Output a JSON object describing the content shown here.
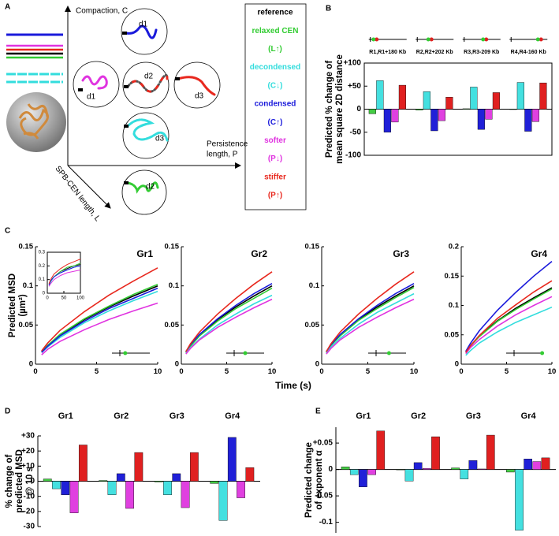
{
  "panels": [
    "A",
    "B",
    "C",
    "D",
    "E"
  ],
  "diagram": {
    "axis_labels": {
      "compaction": "Compaction, C",
      "persistence": [
        "Persistence",
        "length, P"
      ],
      "length": "SPB-CEN length, L"
    },
    "circle_labels": [
      "d1",
      "d1",
      "d2",
      "d3",
      "d3",
      "d2"
    ],
    "legend": [
      {
        "text": "reference",
        "color": "#000000"
      },
      {
        "text": "relaxed CEN",
        "color": "#33cc33"
      },
      {
        "text": "(L↑)",
        "color": "#33cc33"
      },
      {
        "text": "decondensed",
        "color": "#33dddd"
      },
      {
        "text": "(C↓)",
        "color": "#33dddd"
      },
      {
        "text": "condensed",
        "color": "#1a1adb"
      },
      {
        "text": "(C↑)",
        "color": "#1a1adb"
      },
      {
        "text": "softer",
        "color": "#e033e0"
      },
      {
        "text": "(P↓)",
        "color": "#e033e0"
      },
      {
        "text": "stiffer",
        "color": "#e8281e"
      },
      {
        "text": "(P↑)",
        "color": "#e8281e"
      }
    ]
  },
  "chart_data": [
    {
      "type": "bar",
      "box": true,
      "ylabel": [
        "Predicted % change of",
        "mean square 2D distance"
      ],
      "categories": [
        "R1,R1+180 Kb",
        "R2,R2+202 Kb",
        "R3,R3-209 Kb",
        "R4,R4-160 Kb"
      ],
      "ylim": [
        -100,
        100
      ],
      "yticks": [
        {
          "value": 100,
          "label": "+100"
        },
        {
          "value": 50,
          "label": "+50"
        },
        0,
        -50,
        -100
      ],
      "series": [
        {
          "color": "#44cc44",
          "values": [
            -10,
            -2,
            1,
            0
          ]
        },
        {
          "color": "#44e0e0",
          "values": [
            62,
            38,
            48,
            58
          ]
        },
        {
          "color": "#2020d8",
          "values": [
            -50,
            -47,
            -44,
            -48
          ]
        },
        {
          "color": "#e040e0",
          "values": [
            -28,
            -25,
            -22,
            -27
          ]
        },
        {
          "color": "#e02020",
          "values": [
            52,
            26,
            36,
            57
          ]
        }
      ]
    },
    {
      "type": "line",
      "title": "Gr1",
      "ylabel": [
        "Predicted MSD",
        "(µm²)"
      ],
      "xlabel": "Time (s)",
      "x": [
        0.5,
        1,
        2,
        4,
        6,
        8,
        10
      ],
      "xlim": [
        0,
        10
      ],
      "xticks": [
        0,
        5,
        10
      ],
      "ylim": [
        0,
        0.15
      ],
      "yticks": [
        0,
        0.05,
        0.1,
        0.15
      ],
      "series": [
        {
          "color": "#000000",
          "values": [
            0.016,
            0.024,
            0.037,
            0.057,
            0.073,
            0.087,
            0.1
          ]
        },
        {
          "color": "#33cc33",
          "values": [
            0.016,
            0.024,
            0.038,
            0.058,
            0.074,
            0.089,
            0.102
          ]
        },
        {
          "color": "#33dddd",
          "values": [
            0.015,
            0.022,
            0.034,
            0.053,
            0.068,
            0.081,
            0.093
          ]
        },
        {
          "color": "#1a1adb",
          "values": [
            0.015,
            0.023,
            0.036,
            0.055,
            0.071,
            0.084,
            0.097
          ]
        },
        {
          "color": "#e033e0",
          "values": [
            0.012,
            0.019,
            0.029,
            0.044,
            0.057,
            0.068,
            0.078
          ]
        },
        {
          "color": "#e8281e",
          "values": [
            0.017,
            0.027,
            0.043,
            0.067,
            0.088,
            0.106,
            0.123
          ]
        }
      ],
      "inset": {
        "x": [
          5,
          10,
          20,
          40,
          60,
          80,
          100
        ],
        "xlim": [
          0,
          100
        ],
        "xticks": [
          0,
          50,
          100
        ],
        "ylim": [
          0,
          0.3
        ],
        "yticks": [
          0,
          0.1,
          0.2,
          0.3
        ],
        "series": [
          {
            "color": "#000000",
            "values": [
              0.06,
              0.09,
              0.12,
              0.16,
              0.18,
              0.2,
              0.21
            ]
          },
          {
            "color": "#33cc33",
            "values": [
              0.06,
              0.09,
              0.12,
              0.16,
              0.19,
              0.2,
              0.22
            ]
          },
          {
            "color": "#33dddd",
            "values": [
              0.06,
              0.08,
              0.12,
              0.15,
              0.17,
              0.19,
              0.2
            ]
          },
          {
            "color": "#1a1adb",
            "values": [
              0.06,
              0.09,
              0.12,
              0.15,
              0.17,
              0.19,
              0.2
            ]
          },
          {
            "color": "#e033e0",
            "values": [
              0.05,
              0.07,
              0.1,
              0.13,
              0.15,
              0.16,
              0.17
            ]
          },
          {
            "color": "#e8281e",
            "values": [
              0.07,
              0.1,
              0.14,
              0.18,
              0.21,
              0.23,
              0.25
            ]
          }
        ]
      }
    },
    {
      "type": "line",
      "title": "Gr2",
      "x": [
        0.5,
        1,
        2,
        4,
        6,
        8,
        10
      ],
      "xlim": [
        0,
        10
      ],
      "xticks": [
        0,
        5,
        10
      ],
      "ylim": [
        0,
        0.15
      ],
      "yticks": [
        0,
        0.05,
        0.1,
        0.15
      ],
      "series": [
        {
          "color": "#000000",
          "values": [
            0.016,
            0.024,
            0.037,
            0.057,
            0.073,
            0.087,
            0.1
          ]
        },
        {
          "color": "#33cc33",
          "values": [
            0.015,
            0.023,
            0.036,
            0.055,
            0.071,
            0.084,
            0.097
          ]
        },
        {
          "color": "#33dddd",
          "values": [
            0.014,
            0.021,
            0.032,
            0.05,
            0.064,
            0.077,
            0.088
          ]
        },
        {
          "color": "#1a1adb",
          "values": [
            0.016,
            0.025,
            0.038,
            0.058,
            0.075,
            0.09,
            0.103
          ]
        },
        {
          "color": "#e033e0",
          "values": [
            0.013,
            0.02,
            0.031,
            0.047,
            0.06,
            0.072,
            0.083
          ]
        },
        {
          "color": "#e8281e",
          "values": [
            0.016,
            0.026,
            0.041,
            0.064,
            0.084,
            0.102,
            0.118
          ]
        }
      ]
    },
    {
      "type": "line",
      "title": "Gr3",
      "x": [
        0.5,
        1,
        2,
        4,
        6,
        8,
        10
      ],
      "xlim": [
        0,
        10
      ],
      "xticks": [
        0,
        5,
        10
      ],
      "ylim": [
        0,
        0.15
      ],
      "yticks": [
        0,
        0.05,
        0.1,
        0.15
      ],
      "series": [
        {
          "color": "#000000",
          "values": [
            0.016,
            0.024,
            0.037,
            0.057,
            0.073,
            0.087,
            0.1
          ]
        },
        {
          "color": "#33cc33",
          "values": [
            0.015,
            0.024,
            0.036,
            0.056,
            0.071,
            0.085,
            0.098
          ]
        },
        {
          "color": "#33dddd",
          "values": [
            0.014,
            0.022,
            0.033,
            0.051,
            0.066,
            0.078,
            0.09
          ]
        },
        {
          "color": "#1a1adb",
          "values": [
            0.016,
            0.025,
            0.038,
            0.058,
            0.075,
            0.09,
            0.103
          ]
        },
        {
          "color": "#e033e0",
          "values": [
            0.013,
            0.02,
            0.031,
            0.047,
            0.06,
            0.072,
            0.083
          ]
        },
        {
          "color": "#e8281e",
          "values": [
            0.016,
            0.026,
            0.041,
            0.064,
            0.084,
            0.102,
            0.118
          ]
        }
      ]
    },
    {
      "type": "line",
      "title": "Gr4",
      "x": [
        0.5,
        1,
        2,
        4,
        6,
        8,
        10
      ],
      "xlim": [
        0,
        10
      ],
      "xticks": [
        0,
        5,
        10
      ],
      "ylim": [
        0,
        0.2
      ],
      "yticks": [
        0,
        0.05,
        0.1,
        0.15,
        0.2
      ],
      "series": [
        {
          "color": "#000000",
          "values": [
            0.02,
            0.031,
            0.048,
            0.074,
            0.095,
            0.113,
            0.13
          ]
        },
        {
          "color": "#33cc33",
          "values": [
            0.02,
            0.031,
            0.047,
            0.073,
            0.093,
            0.111,
            0.128
          ]
        },
        {
          "color": "#33dddd",
          "values": [
            0.015,
            0.023,
            0.036,
            0.055,
            0.071,
            0.084,
            0.097
          ]
        },
        {
          "color": "#1a1adb",
          "values": [
            0.022,
            0.035,
            0.057,
            0.092,
            0.122,
            0.15,
            0.175
          ]
        },
        {
          "color": "#e033e0",
          "values": [
            0.018,
            0.028,
            0.042,
            0.065,
            0.084,
            0.1,
            0.115
          ]
        },
        {
          "color": "#e8281e",
          "values": [
            0.02,
            0.031,
            0.049,
            0.078,
            0.101,
            0.123,
            0.142
          ]
        }
      ]
    },
    {
      "type": "bar",
      "ylabel": [
        "% change of",
        "predicted MSD",
        "@ 10 s"
      ],
      "categories": [
        "Gr1",
        "Gr2",
        "Gr3",
        "Gr4"
      ],
      "ylim": [
        -30,
        30
      ],
      "yticks": [
        {
          "value": 30,
          "label": "+30"
        },
        {
          "value": 20,
          "label": "+20"
        },
        {
          "value": 10,
          "label": "+10"
        },
        0,
        -10,
        -20,
        -30
      ],
      "series": [
        {
          "color": "#44cc44",
          "values": [
            1.5,
            0.5,
            -0.5,
            -1.5
          ]
        },
        {
          "color": "#44e0e0",
          "values": [
            -5,
            -9,
            -9,
            -26
          ]
        },
        {
          "color": "#2020d8",
          "values": [
            -9,
            5,
            5,
            29
          ]
        },
        {
          "color": "#e040e0",
          "values": [
            -21,
            -18,
            -17.5,
            -11
          ]
        },
        {
          "color": "#e02020",
          "values": [
            24,
            19,
            19,
            9
          ]
        }
      ]
    },
    {
      "type": "bar",
      "ylabel": [
        "Predicted change",
        "of exponent α"
      ],
      "categories": [
        "Gr1",
        "Gr2",
        "Gr3",
        "Gr4"
      ],
      "ylim": [
        -0.12,
        0.08
      ],
      "yticks": [
        {
          "value": 0.05,
          "label": "+0.05"
        },
        0,
        -0.05,
        -0.1
      ],
      "series": [
        {
          "color": "#44cc44",
          "values": [
            0.005,
            0,
            0.003,
            -0.005
          ]
        },
        {
          "color": "#44e0e0",
          "values": [
            -0.01,
            -0.022,
            -0.018,
            -0.115
          ]
        },
        {
          "color": "#2020d8",
          "values": [
            -0.033,
            0.013,
            0.017,
            0.02
          ]
        },
        {
          "color": "#e040e0",
          "values": [
            -0.01,
            0.002,
            0.001,
            0.015
          ]
        },
        {
          "color": "#e02020",
          "values": [
            0.073,
            0.062,
            0.065,
            0.022
          ]
        }
      ]
    }
  ]
}
